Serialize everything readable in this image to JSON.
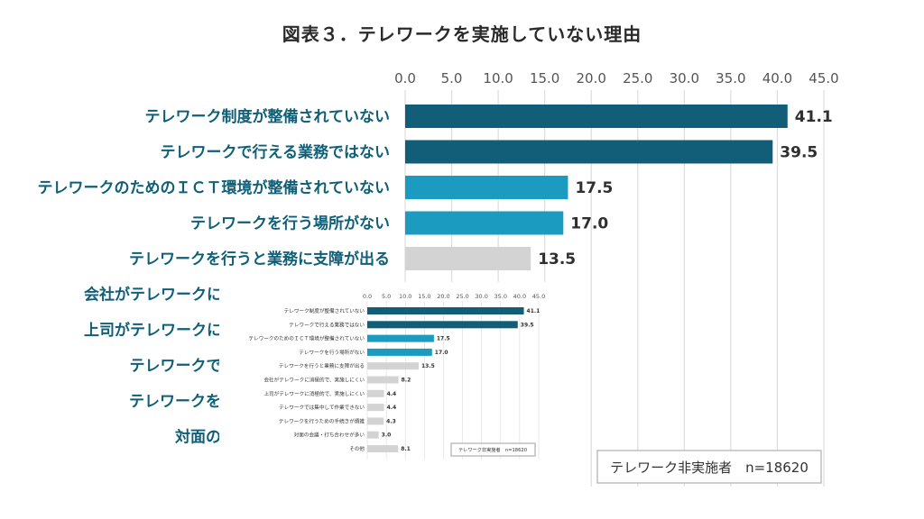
{
  "title": "図表３．テレワークを実施していない理由",
  "legend": "テレワーク非実施者　n=18620",
  "colors": {
    "dark": "#125e78",
    "mid": "#1a9bbf",
    "gray": "#d3d3d3",
    "grid": "#dcdcdc"
  },
  "chart_data": {
    "type": "bar",
    "orientation": "horizontal",
    "title": "図表３．テレワークを実施していない理由",
    "xlim": [
      0,
      45
    ],
    "ticks": [
      "0.0",
      "5.0",
      "10.0",
      "15.0",
      "20.0",
      "25.0",
      "30.0",
      "35.0",
      "40.0",
      "45.0"
    ],
    "grid": true,
    "legend_position": "bottom-right",
    "categories": [
      "テレワーク制度が整備されていない",
      "テレワークで行える業務ではない",
      "テレワークのためのＩＣＴ環境が整備されていない",
      "テレワークを行う場所がない",
      "テレワークを行うと業務に支障が出る",
      "会社がテレワークに消極的で、実施しにくい",
      "上司がテレワークに消極的で、実施しにくい",
      "テレワークでは集中して作業できない",
      "テレワークを行うための手続きが煩雑",
      "対面の会議・打ち合わせが多い",
      "その他"
    ],
    "values": [
      41.1,
      39.5,
      17.5,
      17.0,
      13.5,
      8.2,
      4.4,
      4.4,
      4.3,
      3.0,
      8.1
    ],
    "value_labels": [
      "41.1",
      "39.5",
      "17.5",
      "17.0",
      "13.5",
      "8.2",
      "4.4",
      "4.4",
      "4.3",
      "3.0",
      "8.1"
    ],
    "bar_colors": [
      "dark",
      "dark",
      "mid",
      "mid",
      "gray",
      "gray",
      "gray",
      "gray",
      "gray",
      "gray",
      "gray"
    ]
  }
}
